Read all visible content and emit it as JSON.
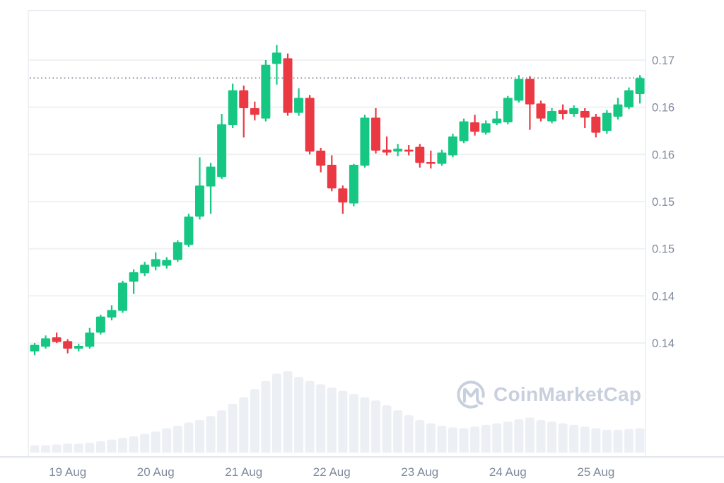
{
  "watermark": {
    "logo_icon": "coinmarketcap-logo",
    "text": "CoinMarketCap"
  },
  "price_axis": {
    "side": "right",
    "labels": [
      "0.17",
      "0.16",
      "0.16",
      "0.15",
      "0.15",
      "0.14",
      "0.14"
    ],
    "gridline_prices": [
      0.17,
      0.165,
      0.16,
      0.155,
      0.15,
      0.145,
      0.14
    ]
  },
  "time_axis": {
    "labels": [
      "19 Aug",
      "20 Aug",
      "21 Aug",
      "22 Aug",
      "23 Aug",
      "24 Aug",
      "25 Aug"
    ],
    "tick_candle_indices": [
      3,
      11,
      19,
      27,
      35,
      43,
      51
    ]
  },
  "last_price_line": {
    "price": 0.1681,
    "style": "dotted"
  },
  "colors": {
    "up": "#16c784",
    "down": "#ea3943",
    "grid": "#eff1f5",
    "plot_border": "#e9edf2",
    "bottom_border": "#e4e8ee",
    "axis_text": "#808a9d",
    "volume_bar": "#eceff4",
    "watermark": "#c8cfdd",
    "dotted_line": "#8e95a3",
    "background": "#ffffff"
  },
  "chart_data": {
    "type": "candlestick",
    "title": "",
    "xlabel": "",
    "ylabel": "",
    "x_tick_labels": [
      "19 Aug",
      "20 Aug",
      "21 Aug",
      "22 Aug",
      "23 Aug",
      "24 Aug",
      "25 Aug"
    ],
    "ylim": [
      0.139,
      0.1753
    ],
    "grid": "horizontal",
    "legend": "none",
    "candles_ohlc": [
      [
        0.1391,
        0.14,
        0.1387,
        0.1398
      ],
      [
        0.1396,
        0.1408,
        0.1394,
        0.1405
      ],
      [
        0.1406,
        0.1411,
        0.14,
        0.1401
      ],
      [
        0.1402,
        0.1404,
        0.1389,
        0.1394
      ],
      [
        0.1394,
        0.1399,
        0.1391,
        0.1397
      ],
      [
        0.1396,
        0.1416,
        0.1394,
        0.1411
      ],
      [
        0.1411,
        0.143,
        0.1409,
        0.1428
      ],
      [
        0.1427,
        0.144,
        0.1424,
        0.1435
      ],
      [
        0.1434,
        0.1466,
        0.1432,
        0.1464
      ],
      [
        0.1465,
        0.1478,
        0.1452,
        0.1475
      ],
      [
        0.1474,
        0.1486,
        0.1471,
        0.1483
      ],
      [
        0.1481,
        0.1496,
        0.1477,
        0.1489
      ],
      [
        0.1482,
        0.1491,
        0.1479,
        0.1488
      ],
      [
        0.1488,
        0.1509,
        0.1486,
        0.1507
      ],
      [
        0.1504,
        0.1537,
        0.1502,
        0.1534
      ],
      [
        0.1534,
        0.1597,
        0.1531,
        0.1567
      ],
      [
        0.1566,
        0.1591,
        0.1537,
        0.1587
      ],
      [
        0.1576,
        0.1643,
        0.1574,
        0.1632
      ],
      [
        0.1631,
        0.1675,
        0.1628,
        0.1668
      ],
      [
        0.1668,
        0.1673,
        0.1618,
        0.1649
      ],
      [
        0.1649,
        0.1656,
        0.1636,
        0.1642
      ],
      [
        0.1638,
        0.17,
        0.1635,
        0.1695
      ],
      [
        0.1696,
        0.1716,
        0.1674,
        0.1708
      ],
      [
        0.1702,
        0.1707,
        0.1641,
        0.1644
      ],
      [
        0.1644,
        0.167,
        0.1641,
        0.166
      ],
      [
        0.166,
        0.1663,
        0.16,
        0.1603
      ],
      [
        0.1604,
        0.1607,
        0.1581,
        0.1588
      ],
      [
        0.1589,
        0.1599,
        0.1561,
        0.1564
      ],
      [
        0.1564,
        0.1567,
        0.1537,
        0.1549
      ],
      [
        0.1548,
        0.159,
        0.1545,
        0.1589
      ],
      [
        0.1588,
        0.1642,
        0.1586,
        0.1639
      ],
      [
        0.1639,
        0.1649,
        0.1601,
        0.1604
      ],
      [
        0.1605,
        0.1619,
        0.1599,
        0.1602
      ],
      [
        0.1603,
        0.1611,
        0.1598,
        0.1606
      ],
      [
        0.1605,
        0.161,
        0.1599,
        0.1603
      ],
      [
        0.1608,
        0.1611,
        0.1586,
        0.1591
      ],
      [
        0.1592,
        0.1604,
        0.1585,
        0.159
      ],
      [
        0.159,
        0.1605,
        0.1588,
        0.1602
      ],
      [
        0.1599,
        0.1622,
        0.1597,
        0.1619
      ],
      [
        0.1614,
        0.1638,
        0.1612,
        0.1635
      ],
      [
        0.1634,
        0.1642,
        0.162,
        0.1624
      ],
      [
        0.1623,
        0.1636,
        0.1621,
        0.1633
      ],
      [
        0.1633,
        0.1646,
        0.1631,
        0.1638
      ],
      [
        0.1634,
        0.1662,
        0.1632,
        0.166
      ],
      [
        0.1657,
        0.1684,
        0.1655,
        0.168
      ],
      [
        0.168,
        0.1683,
        0.1626,
        0.1653
      ],
      [
        0.1654,
        0.1657,
        0.1635,
        0.1638
      ],
      [
        0.1635,
        0.1649,
        0.1633,
        0.1646
      ],
      [
        0.1647,
        0.1653,
        0.1637,
        0.1643
      ],
      [
        0.1643,
        0.1652,
        0.164,
        0.1649
      ],
      [
        0.1646,
        0.1649,
        0.1628,
        0.1639
      ],
      [
        0.164,
        0.1643,
        0.1618,
        0.1623
      ],
      [
        0.1625,
        0.1647,
        0.1622,
        0.1644
      ],
      [
        0.164,
        0.166,
        0.1637,
        0.1653
      ],
      [
        0.165,
        0.1671,
        0.1648,
        0.1668
      ],
      [
        0.1664,
        0.1684,
        0.1654,
        0.1681
      ]
    ],
    "volumes_relative": [
      0.09,
      0.09,
      0.1,
      0.11,
      0.11,
      0.12,
      0.14,
      0.16,
      0.18,
      0.2,
      0.23,
      0.26,
      0.3,
      0.33,
      0.37,
      0.4,
      0.45,
      0.52,
      0.6,
      0.68,
      0.78,
      0.88,
      0.97,
      1.0,
      0.93,
      0.88,
      0.84,
      0.8,
      0.76,
      0.72,
      0.68,
      0.64,
      0.58,
      0.52,
      0.46,
      0.4,
      0.36,
      0.33,
      0.31,
      0.3,
      0.32,
      0.34,
      0.36,
      0.38,
      0.41,
      0.43,
      0.4,
      0.38,
      0.36,
      0.34,
      0.32,
      0.3,
      0.28,
      0.28,
      0.29,
      0.3
    ]
  }
}
